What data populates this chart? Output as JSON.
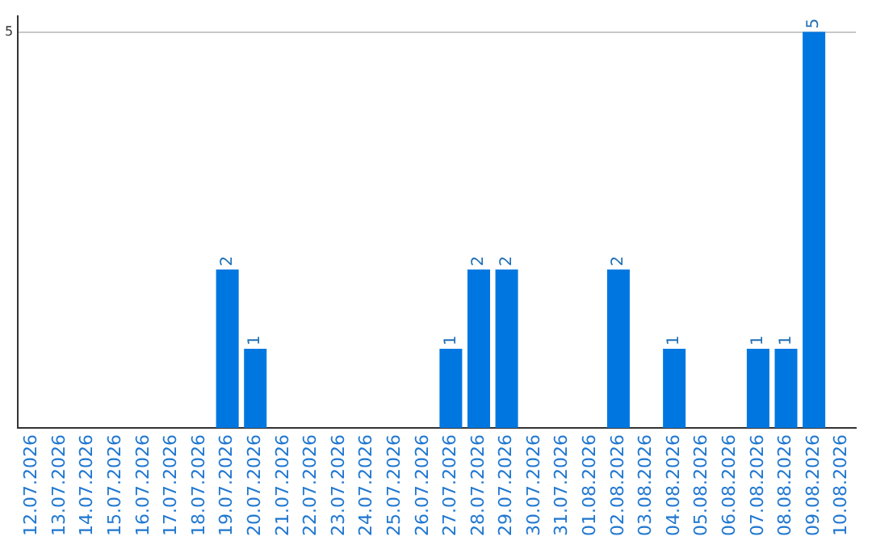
{
  "chart_data": {
    "type": "bar",
    "categories": [
      "12.07.2026",
      "13.07.2026",
      "14.07.2026",
      "15.07.2026",
      "16.07.2026",
      "17.07.2026",
      "18.07.2026",
      "19.07.2026",
      "20.07.2026",
      "21.07.2026",
      "22.07.2026",
      "23.07.2026",
      "24.07.2026",
      "25.07.2026",
      "26.07.2026",
      "27.07.2026",
      "28.07.2026",
      "29.07.2026",
      "30.07.2026",
      "31.07.2026",
      "01.08.2026",
      "02.08.2026",
      "03.08.2026",
      "04.08.2026",
      "05.08.2026",
      "06.08.2026",
      "07.08.2026",
      "08.08.2026",
      "09.08.2026",
      "10.08.2026"
    ],
    "values": [
      0,
      0,
      0,
      0,
      0,
      0,
      0,
      2,
      1,
      0,
      0,
      0,
      0,
      0,
      0,
      1,
      2,
      2,
      0,
      0,
      0,
      2,
      0,
      1,
      0,
      0,
      1,
      1,
      5,
      0
    ],
    "value_labels": [
      null,
      null,
      null,
      null,
      null,
      null,
      null,
      "2",
      "1",
      null,
      null,
      null,
      null,
      null,
      null,
      "1",
      "2",
      "2",
      null,
      null,
      null,
      "2",
      null,
      "1",
      null,
      null,
      "1",
      "1",
      "5",
      null
    ],
    "color": "#0077e0",
    "ylim": [
      0,
      5.2
    ],
    "yticks": [
      5
    ],
    "grid": "y",
    "legend": false
  }
}
